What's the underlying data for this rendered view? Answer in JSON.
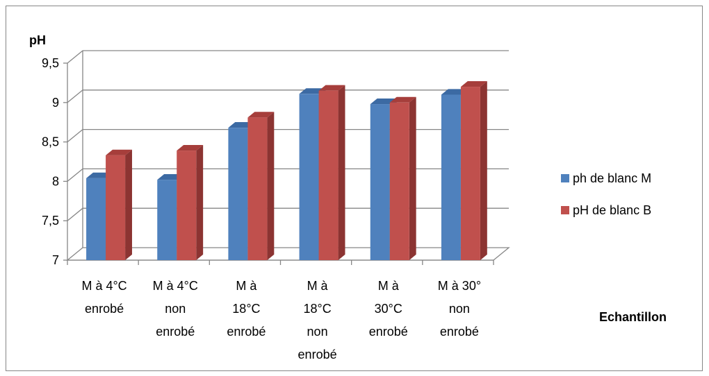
{
  "chart_data": {
    "type": "bar",
    "categories": [
      [
        "M à 4°C",
        "enrobé"
      ],
      [
        "M à 4°C",
        "non",
        "enrobé"
      ],
      [
        "M à",
        "18°C",
        "enrobé"
      ],
      [
        "M à",
        "18°C",
        "non",
        "enrobé"
      ],
      [
        "M à",
        "30°C",
        "enrobé"
      ],
      [
        "M à 30°",
        "non",
        "enrobé"
      ]
    ],
    "series": [
      {
        "name": "ph de blanc M",
        "color": "#4f81bd",
        "side_color": "#3a6597",
        "top_color": "#3c6aa3",
        "values": [
          8.04,
          8.02,
          8.68,
          9.11,
          8.98,
          9.1
        ]
      },
      {
        "name": "pH de blanc B",
        "color": "#c0504d",
        "side_color": "#8c3432",
        "top_color": "#a63e3b",
        "values": [
          8.33,
          8.39,
          8.81,
          9.15,
          9.0,
          9.2
        ]
      }
    ],
    "ylabel": "pH",
    "xlabel": "Echantillon",
    "ylim": [
      7,
      9.5
    ],
    "yticks": [
      "7",
      "7,5",
      "8",
      "8,5",
      "9",
      "9,5"
    ],
    "ytick_values": [
      7,
      7.5,
      8,
      8.5,
      9,
      9.5
    ],
    "grid": true,
    "legend_position": "right"
  }
}
